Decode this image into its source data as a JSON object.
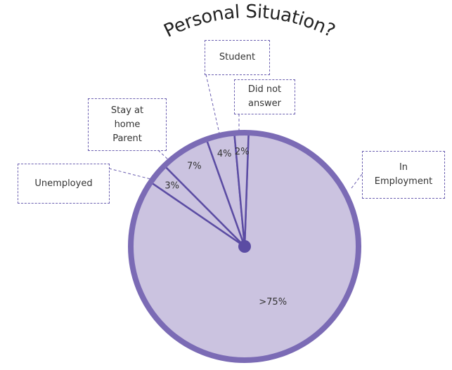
{
  "chart_data": {
    "type": "pie",
    "title": "Personal Situation?",
    "categories": [
      "In Employment",
      "Unemployed",
      "Stay at home Parent",
      "Student",
      "Did not answer"
    ],
    "values": [
      84,
      3,
      7,
      4,
      2
    ],
    "value_labels": [
      ">75%",
      "3%",
      "7%",
      "4%",
      "2%"
    ],
    "color": "#cbc3e0",
    "edge_color": "#7b6bb5",
    "divider_color": "#5b4ca3"
  }
}
